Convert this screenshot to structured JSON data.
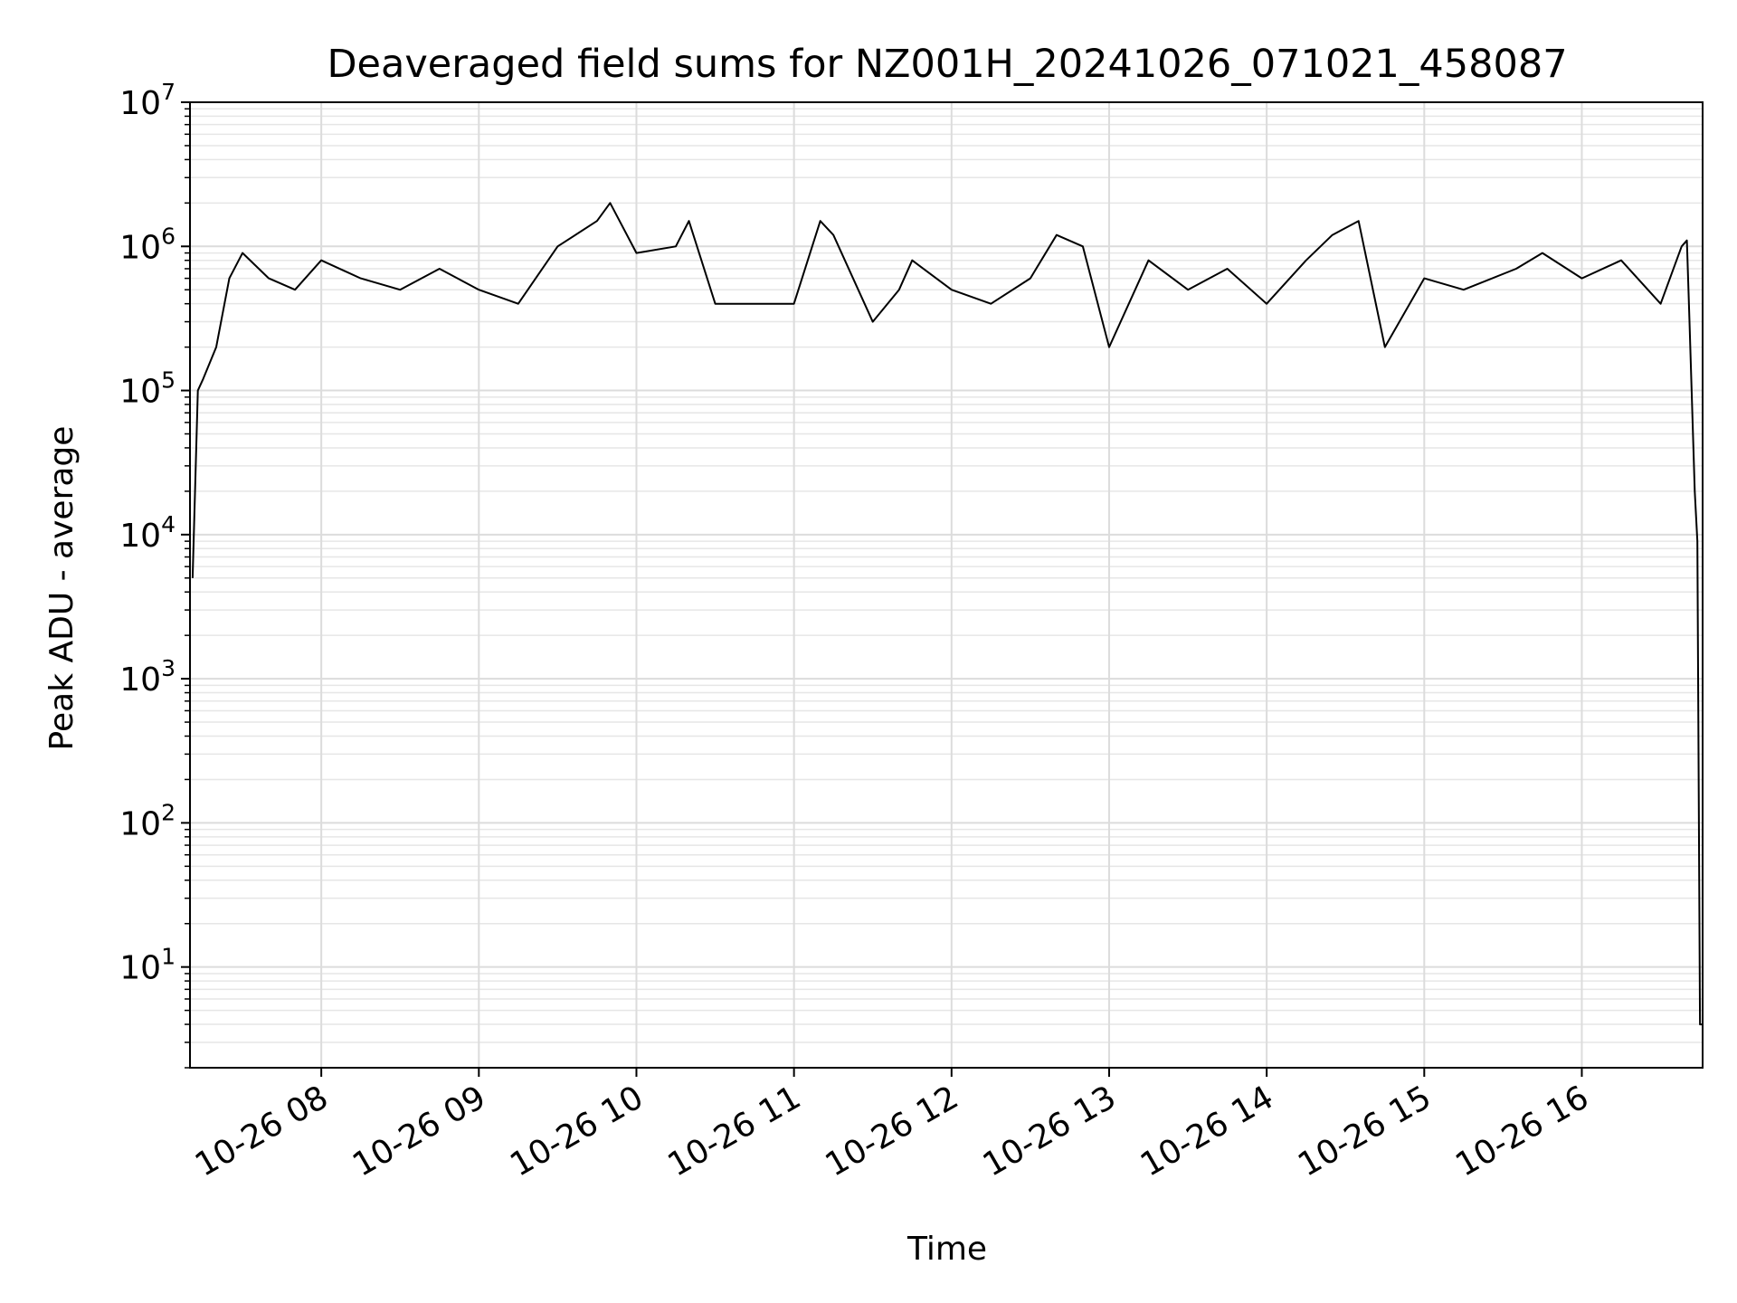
{
  "chart_data": {
    "type": "line",
    "title": "Deaveraged field sums for NZ001H_20241026_071021_458087",
    "xlabel": "Time",
    "ylabel": "Peak ADU - average",
    "yscale": "log",
    "ylim": [
      2,
      10000000
    ],
    "xlim": [
      "2024-10-26 07:10",
      "2024-10-26 16:46"
    ],
    "grid": true,
    "xticks": [
      {
        "x": "2024-10-26 08:00",
        "label": "10-26 08"
      },
      {
        "x": "2024-10-26 09:00",
        "label": "10-26 09"
      },
      {
        "x": "2024-10-26 10:00",
        "label": "10-26 10"
      },
      {
        "x": "2024-10-26 11:00",
        "label": "10-26 11"
      },
      {
        "x": "2024-10-26 12:00",
        "label": "10-26 12"
      },
      {
        "x": "2024-10-26 13:00",
        "label": "10-26 13"
      },
      {
        "x": "2024-10-26 14:00",
        "label": "10-26 14"
      },
      {
        "x": "2024-10-26 15:00",
        "label": "10-26 15"
      },
      {
        "x": "2024-10-26 16:00",
        "label": "10-26 16"
      }
    ],
    "yticks": [
      {
        "value": 10,
        "base": "10",
        "exp": "1"
      },
      {
        "value": 100,
        "base": "10",
        "exp": "2"
      },
      {
        "value": 1000,
        "base": "10",
        "exp": "3"
      },
      {
        "value": 10000,
        "base": "10",
        "exp": "4"
      },
      {
        "value": 100000,
        "base": "10",
        "exp": "5"
      },
      {
        "value": 1000000,
        "base": "10",
        "exp": "6"
      },
      {
        "value": 10000000,
        "base": "10",
        "exp": "7"
      }
    ],
    "series": [
      {
        "color": "#000000",
        "x": [
          "2024-10-26 07:11",
          "2024-10-26 07:13",
          "2024-10-26 07:15",
          "2024-10-26 07:20",
          "2024-10-26 07:25",
          "2024-10-26 07:30",
          "2024-10-26 07:40",
          "2024-10-26 07:50",
          "2024-10-26 08:00",
          "2024-10-26 08:15",
          "2024-10-26 08:30",
          "2024-10-26 08:45",
          "2024-10-26 09:00",
          "2024-10-26 09:15",
          "2024-10-26 09:30",
          "2024-10-26 09:45",
          "2024-10-26 09:50",
          "2024-10-26 10:00",
          "2024-10-26 10:15",
          "2024-10-26 10:20",
          "2024-10-26 10:30",
          "2024-10-26 10:45",
          "2024-10-26 11:00",
          "2024-10-26 11:10",
          "2024-10-26 11:15",
          "2024-10-26 11:30",
          "2024-10-26 11:40",
          "2024-10-26 11:45",
          "2024-10-26 12:00",
          "2024-10-26 12:15",
          "2024-10-26 12:30",
          "2024-10-26 12:40",
          "2024-10-26 12:50",
          "2024-10-26 13:00",
          "2024-10-26 13:15",
          "2024-10-26 13:30",
          "2024-10-26 13:45",
          "2024-10-26 14:00",
          "2024-10-26 14:15",
          "2024-10-26 14:25",
          "2024-10-26 14:35",
          "2024-10-26 14:45",
          "2024-10-26 15:00",
          "2024-10-26 15:15",
          "2024-10-26 15:35",
          "2024-10-26 15:45",
          "2024-10-26 16:00",
          "2024-10-26 16:15",
          "2024-10-26 16:30",
          "2024-10-26 16:38",
          "2024-10-26 16:40",
          "2024-10-26 16:41",
          "2024-10-26 16:43",
          "2024-10-26 16:44",
          "2024-10-26 16:45",
          "2024-10-26 16:46"
        ],
        "y": [
          5000,
          100000,
          120000,
          200000,
          600000,
          900000,
          600000,
          500000,
          800000,
          600000,
          500000,
          700000,
          500000,
          400000,
          1000000,
          1500000,
          2000000,
          900000,
          1000000,
          1500000,
          400000,
          400000,
          400000,
          1500000,
          1200000,
          300000,
          500000,
          800000,
          500000,
          400000,
          600000,
          1200000,
          1000000,
          200000,
          800000,
          500000,
          700000,
          400000,
          800000,
          1200000,
          1500000,
          200000,
          600000,
          500000,
          700000,
          900000,
          600000,
          800000,
          400000,
          1000000,
          1100000,
          300000,
          20000,
          9000,
          4,
          4
        ]
      }
    ]
  }
}
